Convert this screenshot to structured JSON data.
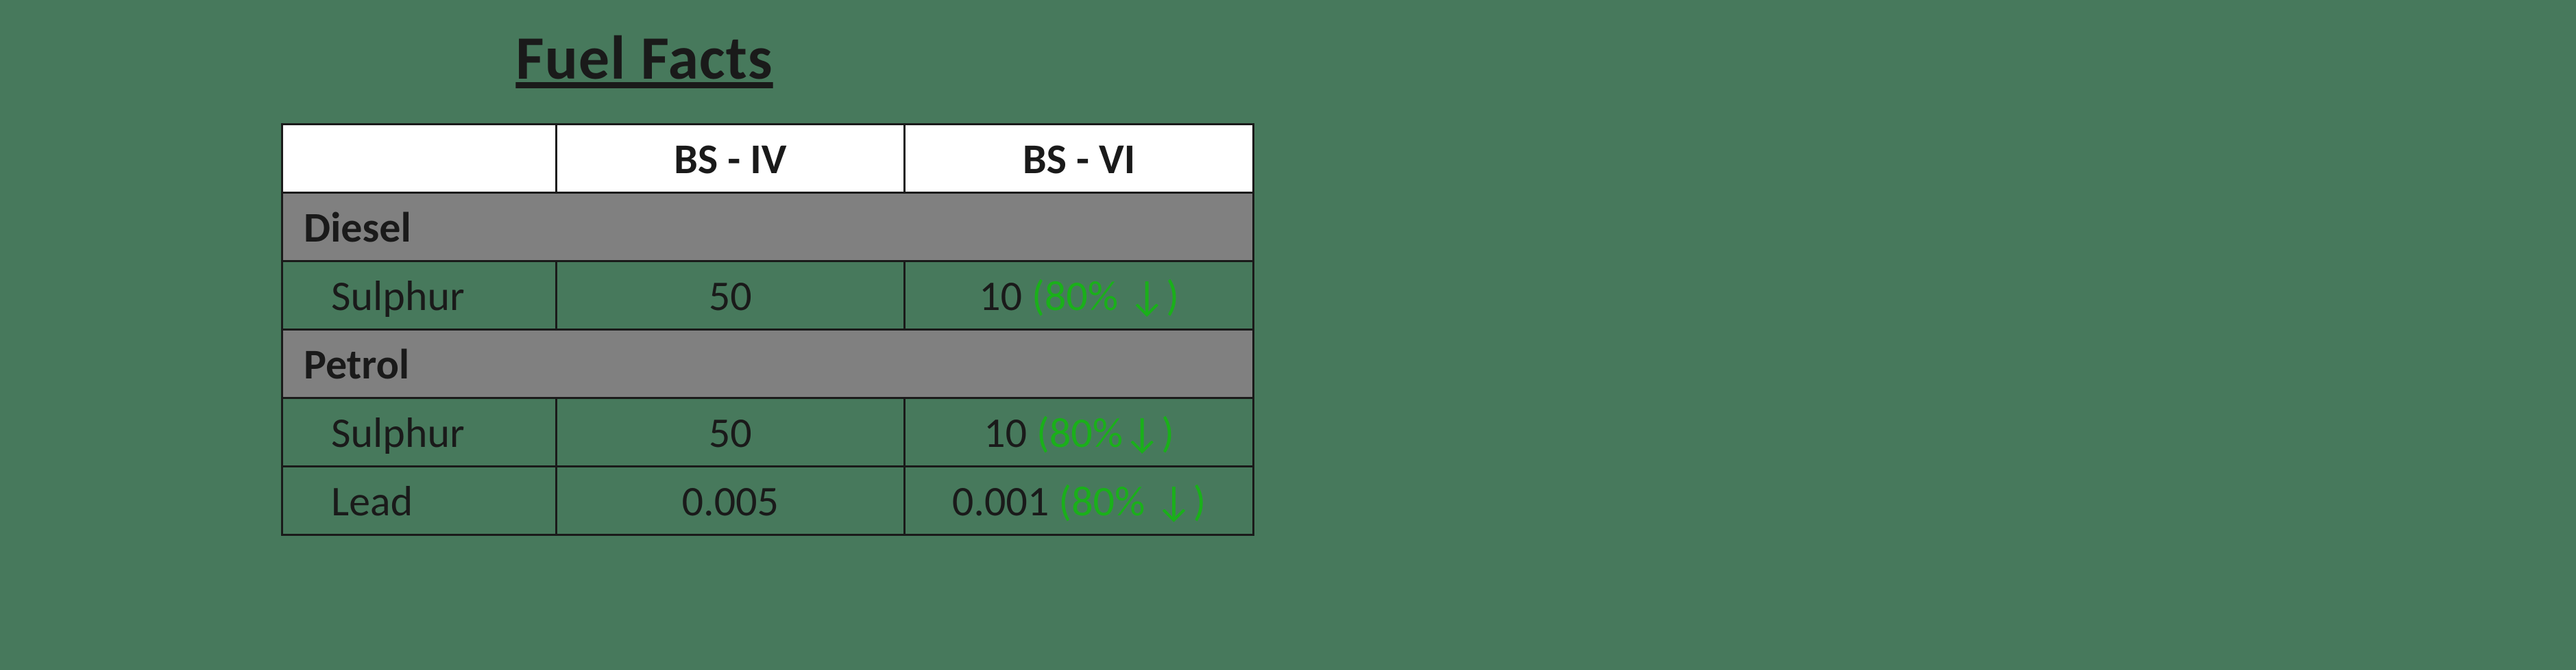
{
  "title": "Fuel Facts",
  "colors": {
    "background": "#47795c",
    "headerBg": "#ffffff",
    "categoryBg": "#808080",
    "border": "#1a1a1a",
    "text": "#1a1a1a",
    "reduction": "#1ab01a"
  },
  "typography": {
    "titleSize": 90,
    "cellSize": 62,
    "family": "Calibri"
  },
  "table": {
    "headers": {
      "col1": "",
      "col2": "BS - IV",
      "col3": "BS - VI"
    },
    "sections": [
      {
        "category": "Diesel",
        "rows": [
          {
            "param": "Sulphur",
            "bs4": "50",
            "bs6": "10",
            "reduction": "(80% ↓)"
          }
        ]
      },
      {
        "category": "Petrol",
        "rows": [
          {
            "param": "Sulphur",
            "bs4": "50",
            "bs6": "10",
            "reduction": "(80%↓)"
          },
          {
            "param": "Lead",
            "bs4": "0.005",
            "bs6": "0.001",
            "reduction": "(80% ↓)"
          }
        ]
      }
    ]
  }
}
